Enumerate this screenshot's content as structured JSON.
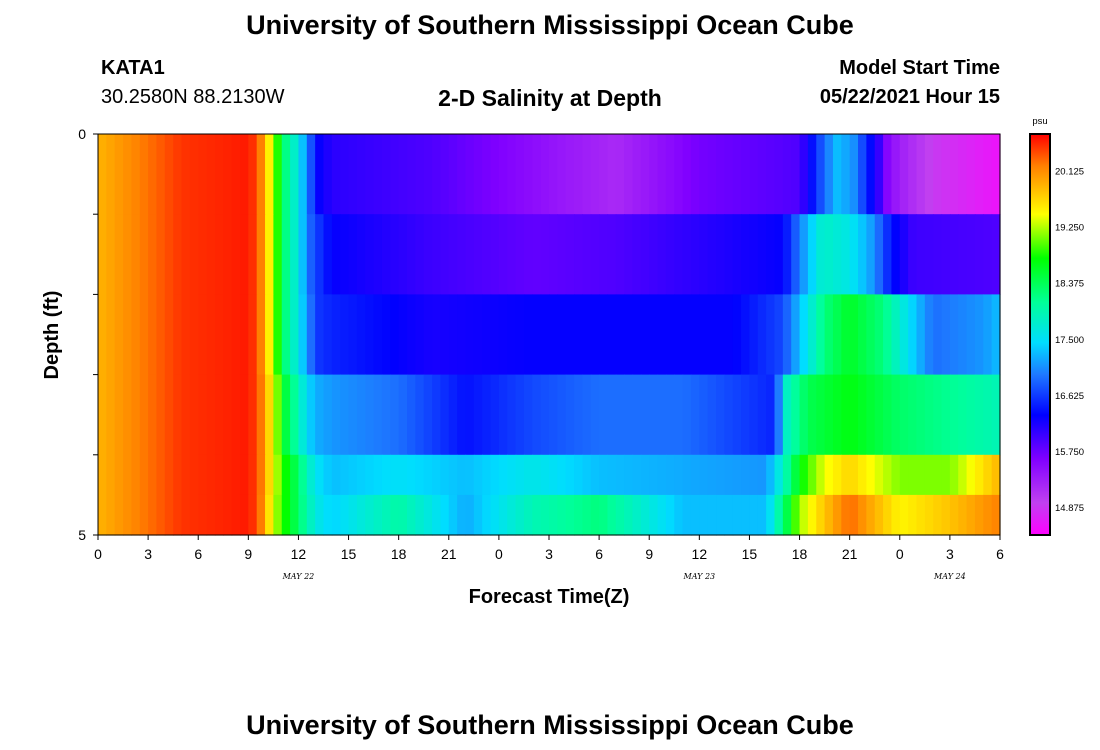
{
  "header": {
    "title_top": "University of Southern Mississippi Ocean Cube",
    "title_bottom": "University of Southern Mississippi Ocean Cube",
    "station": "KATA1",
    "coords": "30.2580N  88.2130W",
    "subtitle": "2-D Salinity at Depth",
    "model_label": "Model Start Time",
    "model_time": "05/22/2021 Hour 15"
  },
  "chart_data": {
    "type": "heatmap",
    "title": "2-D Salinity at Depth",
    "xlabel": "Forecast Time(Z)",
    "ylabel": "Depth (ft)",
    "x_hours_range": [
      0,
      54
    ],
    "y_range": [
      0,
      5
    ],
    "x_tick_labels": [
      "0",
      "3",
      "6",
      "9",
      "12",
      "15",
      "18",
      "21",
      "0",
      "3",
      "6",
      "9",
      "12",
      "15",
      "18",
      "21",
      "0",
      "3",
      "6"
    ],
    "y_tick_labels": [
      "0",
      "",
      "",
      "",
      "",
      "5"
    ],
    "date_labels": [
      {
        "text": "MAY 22",
        "hour": 12
      },
      {
        "text": "MAY 23",
        "hour": 36
      },
      {
        "text": "MAY 24",
        "hour": 51
      }
    ],
    "colorbar": {
      "unit": "psu",
      "min": 14.45,
      "max": 20.7,
      "tick_labels": [
        "20.125",
        "19.250",
        "18.375",
        "17.500",
        "16.625",
        "15.750",
        "14.875"
      ],
      "tick_values": [
        20.125,
        19.25,
        18.375,
        17.5,
        16.625,
        15.75,
        14.875
      ]
    },
    "layers": [
      {
        "depth_band": "0-1",
        "hours": [
          0,
          5,
          9,
          9.6,
          10.5,
          11.2,
          12,
          12.6,
          13.2,
          14,
          20,
          26,
          31,
          36,
          42,
          43.2,
          44.2,
          45.2,
          46.2,
          46.8,
          47.2,
          48,
          50,
          54
        ],
        "values": [
          19.9,
          20.5,
          20.6,
          20.4,
          19.2,
          18.2,
          17.6,
          16.9,
          16.3,
          16.1,
          15.9,
          15.5,
          15.2,
          15.7,
          15.9,
          16.7,
          17.3,
          17.1,
          16.4,
          16.0,
          15.6,
          15.3,
          14.9,
          14.6
        ]
      },
      {
        "depth_band": "1-2",
        "hours": [
          0,
          5,
          9,
          9.6,
          10.5,
          11.2,
          12,
          12.6,
          13.2,
          14,
          20,
          26,
          31,
          36,
          41,
          42.2,
          43.4,
          45,
          46.4,
          47.5,
          48.8,
          54
        ],
        "values": [
          19.9,
          20.5,
          20.6,
          20.4,
          19.2,
          18.2,
          17.6,
          16.9,
          16.6,
          16.3,
          16.0,
          15.8,
          15.9,
          16.1,
          16.3,
          17.1,
          17.8,
          17.6,
          17.1,
          16.4,
          16.0,
          15.9
        ]
      },
      {
        "depth_band": "2-3",
        "hours": [
          0,
          5,
          9,
          9.6,
          10.5,
          11.2,
          12,
          12.6,
          13.2,
          14,
          20,
          26,
          31,
          38,
          41,
          42,
          43.5,
          45,
          47,
          49,
          50,
          53,
          54
        ],
        "values": [
          19.9,
          20.5,
          20.6,
          20.4,
          19.2,
          18.2,
          17.6,
          17.0,
          16.6,
          16.5,
          16.2,
          16.3,
          16.3,
          16.3,
          16.7,
          17.3,
          18.2,
          18.6,
          18.2,
          17.3,
          16.9,
          17.1,
          17.3
        ]
      },
      {
        "depth_band": "3-4",
        "hours": [
          0,
          5,
          9,
          9.6,
          10.5,
          11.2,
          12,
          12.6,
          13.2,
          14,
          18,
          22,
          26,
          30,
          35,
          40.5,
          41.2,
          42.5,
          45,
          48,
          51,
          54
        ],
        "values": [
          19.9,
          20.5,
          20.6,
          20.4,
          19.4,
          18.5,
          17.9,
          17.4,
          17.2,
          17.1,
          16.9,
          16.4,
          16.7,
          16.9,
          16.9,
          16.5,
          17.8,
          18.4,
          18.7,
          18.3,
          18.1,
          17.9
        ]
      },
      {
        "depth_band": "4-4.5",
        "hours": [
          0,
          5,
          9,
          9.6,
          10.5,
          11.2,
          12,
          12.6,
          13.2,
          14,
          18,
          22,
          26,
          30,
          35,
          40,
          41,
          42,
          43.5,
          45,
          48,
          51,
          54
        ],
        "values": [
          19.9,
          20.5,
          20.6,
          20.4,
          19.4,
          18.8,
          18.3,
          17.8,
          17.5,
          17.3,
          17.5,
          17.3,
          17.6,
          17.3,
          17.2,
          17.1,
          17.8,
          18.7,
          19.4,
          19.7,
          19.1,
          19.1,
          19.9
        ]
      },
      {
        "depth_band": "4.5-5",
        "hours": [
          0,
          5,
          9,
          9.6,
          10.5,
          11.2,
          12,
          12.6,
          13.2,
          14,
          18,
          22,
          26,
          30,
          35,
          40,
          41,
          42,
          43.5,
          45,
          48,
          51,
          54
        ],
        "values": [
          19.9,
          20.5,
          20.6,
          20.4,
          19.3,
          18.8,
          18.3,
          17.9,
          17.6,
          17.4,
          18.0,
          17.2,
          17.9,
          18.2,
          17.3,
          17.3,
          18.2,
          19.2,
          19.8,
          20.3,
          19.5,
          19.8,
          20.2
        ]
      }
    ]
  }
}
